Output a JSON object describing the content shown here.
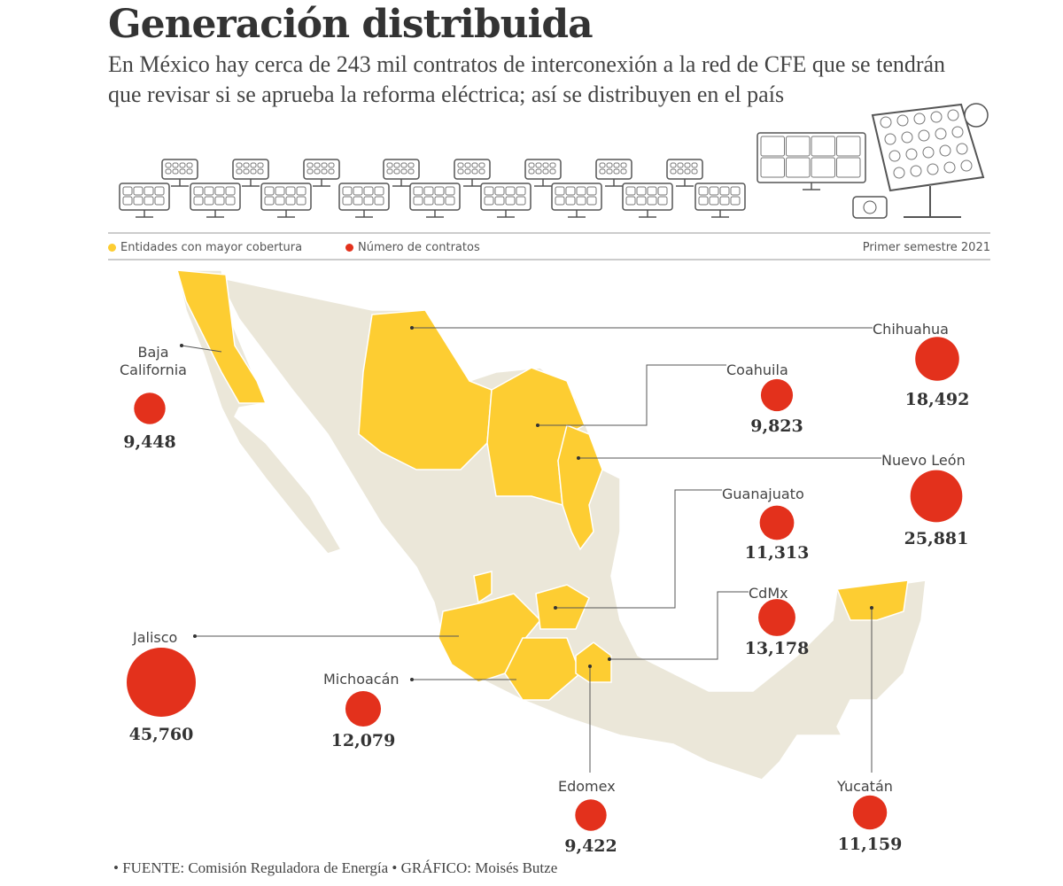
{
  "header": {
    "title": "Generación distribuida",
    "subtitle": "En México hay cerca de 243 mil contratos de interconexión a la red de CFE que se tendrán que revisar si se aprueba la reforma eléctrica; así se distribuyen en el país"
  },
  "legend": {
    "coverage_label": "Entidades con mayor cobertura",
    "contracts_label": "Número de contratos",
    "period": "Primer semestre 2021"
  },
  "colors": {
    "coverage": "#fdcd32",
    "contracts": "#e3311c",
    "land": "#ebe7d9",
    "border": "#ffffff"
  },
  "states": [
    {
      "name": "Baja\nCalifornia",
      "contracts": 9448,
      "display": "9,448"
    },
    {
      "name": "Chihuahua",
      "contracts": 18492,
      "display": "18,492"
    },
    {
      "name": "Coahuila",
      "contracts": 9823,
      "display": "9,823"
    },
    {
      "name": "Nuevo León",
      "contracts": 25881,
      "display": "25,881"
    },
    {
      "name": "Guanajuato",
      "contracts": 11313,
      "display": "11,313"
    },
    {
      "name": "CdMx",
      "contracts": 13178,
      "display": "13,178"
    },
    {
      "name": "Jalisco",
      "contracts": 45760,
      "display": "45,760"
    },
    {
      "name": "Michoacán",
      "contracts": 12079,
      "display": "12,079"
    },
    {
      "name": "Edomex",
      "contracts": 9422,
      "display": "9,422"
    },
    {
      "name": "Yucatán",
      "contracts": 11159,
      "display": "11,159"
    }
  ],
  "footer": "• FUENTE: Comisión Reguladora de Energía • GRÁFICO: Moisés Butze"
}
